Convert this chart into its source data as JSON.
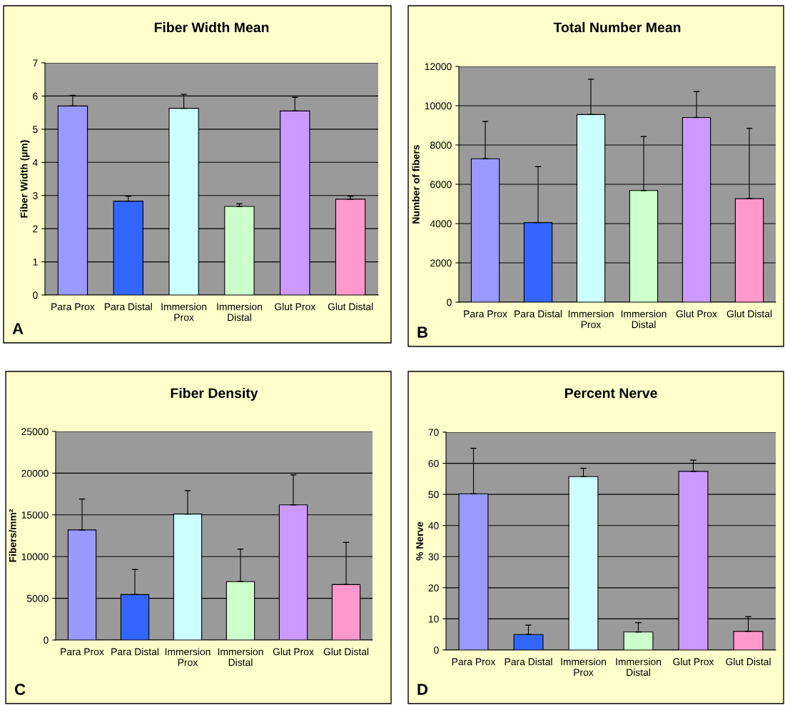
{
  "chart_data": [
    {
      "type": "bar",
      "title": "Fiber Width Mean",
      "ylabel": "Fiber Width (µm)",
      "categories": [
        "Para Prox",
        "Para Distal",
        "Immersion\nProx",
        "Immersion\nDistal",
        "Glut Prox",
        "Glut Distal"
      ],
      "values": [
        5.7,
        2.83,
        5.63,
        2.67,
        5.55,
        2.89
      ],
      "errors": [
        [
          5.7,
          6.02
        ],
        [
          2.83,
          2.98
        ],
        [
          5.63,
          6.05
        ],
        [
          2.67,
          2.75
        ],
        [
          5.55,
          5.96
        ],
        [
          2.89,
          2.98
        ]
      ],
      "colors": [
        "#9999ff",
        "#3366ff",
        "#ccffff",
        "#ccffcc",
        "#cc99ff",
        "#ff99cc"
      ],
      "ylim": [
        0,
        7
      ],
      "yticks": [
        0,
        1,
        2,
        3,
        4,
        5,
        6,
        7
      ],
      "grid": "y",
      "annotations": [
        "A"
      ]
    },
    {
      "type": "bar",
      "title": "Total Number Mean",
      "ylabel": "Number of fibers",
      "categories": [
        "Para Prox",
        "Para Distal",
        "Immersion\nProx",
        "Immersion\nDistal",
        "Glut Prox",
        "Glut Distal"
      ],
      "values": [
        7300,
        4050,
        9550,
        5680,
        9400,
        5270
      ],
      "errors": [
        [
          7300,
          9200
        ],
        [
          4050,
          6900
        ],
        [
          9550,
          11350
        ],
        [
          5680,
          8430
        ],
        [
          9400,
          10720
        ],
        [
          5270,
          8850
        ]
      ],
      "colors": [
        "#9999ff",
        "#3366ff",
        "#ccffff",
        "#ccffcc",
        "#cc99ff",
        "#ff99cc"
      ],
      "ylim": [
        0,
        12000
      ],
      "yticks": [
        0,
        2000,
        4000,
        6000,
        8000,
        10000,
        12000
      ],
      "grid": "y",
      "annotations": [
        "B"
      ]
    },
    {
      "type": "bar",
      "title": "Fiber Density",
      "ylabel": "Fibers/mm²",
      "categories": [
        "Para Prox",
        "Para Distal",
        "Immersion\nProx",
        "Immersion\nDistal",
        "Glut Prox",
        "Glut Distal"
      ],
      "values": [
        13200,
        5450,
        15100,
        7000,
        16200,
        6650
      ],
      "errors": [
        [
          13200,
          16900
        ],
        [
          5450,
          8450
        ],
        [
          15100,
          17900
        ],
        [
          7000,
          10900
        ],
        [
          16200,
          19800
        ],
        [
          6650,
          11700
        ]
      ],
      "colors": [
        "#9999ff",
        "#3366ff",
        "#ccffff",
        "#ccffcc",
        "#cc99ff",
        "#ff99cc"
      ],
      "ylim": [
        0,
        25000
      ],
      "yticks": [
        0,
        5000,
        10000,
        15000,
        20000,
        25000
      ],
      "grid": "y",
      "annotations": [
        "C"
      ]
    },
    {
      "type": "bar",
      "title": "Percent Nerve",
      "ylabel": "% Nerve",
      "categories": [
        "Para Prox",
        "Para Distal",
        "Immersion\nProx",
        "Immersion\nDistal",
        "Glut Prox",
        "Glut Distal"
      ],
      "values": [
        50.2,
        5.0,
        55.7,
        5.8,
        57.4,
        6.0
      ],
      "errors": [
        [
          50.2,
          64.8
        ],
        [
          5.0,
          8.0
        ],
        [
          55.7,
          58.4
        ],
        [
          5.8,
          8.8
        ],
        [
          57.4,
          61.0
        ],
        [
          6.0,
          10.7
        ]
      ],
      "colors": [
        "#9999ff",
        "#3366ff",
        "#ccffff",
        "#ccffcc",
        "#cc99ff",
        "#ff99cc"
      ],
      "ylim": [
        0,
        70
      ],
      "yticks": [
        0,
        10,
        20,
        30,
        40,
        50,
        60,
        70
      ],
      "grid": "y",
      "annotations": [
        "D"
      ]
    }
  ]
}
